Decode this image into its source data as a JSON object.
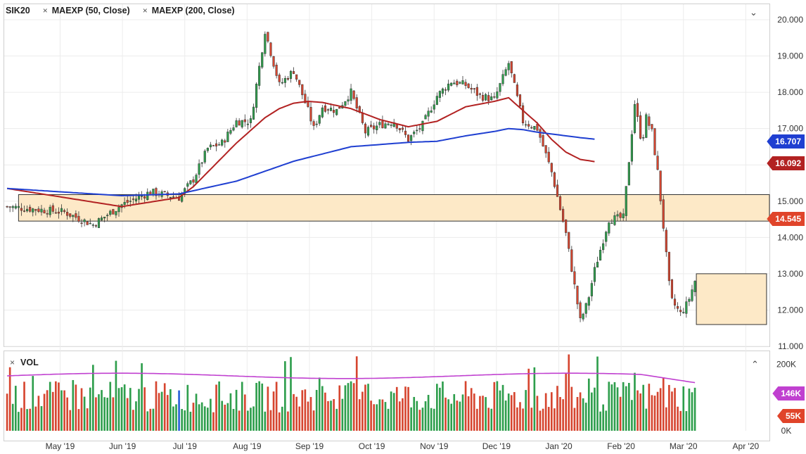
{
  "legend": {
    "symbol": "SIK20",
    "ma50_label": "MAEXP (50, Close)",
    "ma200_label": "MAEXP (200, Close)",
    "remove_glyph": "×"
  },
  "volume_panel": {
    "label": "VOL",
    "collapse_glyph": "⌃",
    "remove_glyph": "×"
  },
  "price_panel": {
    "collapse_glyph": "⌄"
  },
  "price_tags": {
    "ma200": "16.707",
    "ma50": "16.092",
    "last": "14.545"
  },
  "volume_tags": {
    "avg": "146K",
    "last": "55K"
  },
  "colors": {
    "up": "#2e9e4c",
    "down": "#d6452f",
    "ma50": "#b22222",
    "ma200": "#1f3fd1",
    "zone_fill": "#fde9c7",
    "vol_avg": "#c040d0",
    "vol_highlight": "#2860d8",
    "tag_last": "#e0442a",
    "tag_vol_avg": "#c040d0"
  },
  "chart_data": {
    "type": "candlestick",
    "symbol": "SIK20",
    "ylim": [
      11,
      20
    ],
    "ytick_labels": [
      "11.000",
      "12.000",
      "13.000",
      "14.000",
      "15.000",
      "16.000",
      "17.000",
      "18.000",
      "19.000",
      "20.000"
    ],
    "ytick_values": [
      11,
      12,
      13,
      14,
      15,
      16,
      17,
      18,
      19,
      20
    ],
    "xtick_labels": [
      "May '19",
      "Jun '19",
      "Jul '19",
      "Aug '19",
      "Sep '19",
      "Oct '19",
      "Nov '19",
      "Dec '19",
      "Jan '20",
      "Feb '20",
      "Mar '20",
      "Apr '20"
    ],
    "x_range_weeks": [
      -4.2,
      49.2
    ],
    "close_anchor_weeks": [
      -4,
      0,
      2,
      4,
      6,
      8,
      9,
      10,
      11,
      12,
      13,
      14,
      15,
      16,
      17,
      17.4,
      18,
      19,
      20,
      21,
      22,
      23,
      24,
      25,
      26,
      27,
      28,
      29,
      30,
      31,
      32,
      33,
      34,
      35,
      36,
      36.5,
      37,
      38,
      39,
      39.8,
      40.3,
      40.6,
      41,
      41.4,
      41.8,
      42.3,
      43,
      43.5,
      44
    ],
    "close_anchor_values": [
      14.85,
      14.7,
      14.35,
      14.9,
      15.25,
      15.1,
      15.6,
      16.45,
      16.6,
      17.2,
      17.2,
      19.7,
      18.2,
      18.6,
      17.5,
      17.0,
      17.6,
      17.5,
      18.0,
      16.9,
      17.1,
      17.2,
      16.7,
      17.1,
      17.9,
      18.3,
      18.2,
      17.9,
      17.8,
      18.8,
      17.2,
      17.0,
      15.8,
      14.1,
      11.7,
      12.2,
      13.1,
      14.5,
      14.545,
      17.7,
      16.6,
      17.3,
      16.9,
      15.8,
      14.3,
      12.3,
      11.9,
      12.2,
      12.8
    ],
    "volume_ylim": [
      0,
      220000
    ],
    "volume_tick_labels": [
      "0K",
      "200K"
    ],
    "volume_tick_values": [
      0,
      200000
    ],
    "series": [
      {
        "name": "MAEXP (50, Close)",
        "last": 16.092,
        "anchor_weeks": [
          -4,
          0,
          4,
          8,
          9,
          10,
          11,
          12,
          13,
          14,
          15,
          16,
          17,
          18,
          20,
          22,
          24,
          26,
          28,
          30,
          31,
          32,
          33,
          34,
          35,
          36,
          37
        ],
        "anchor_values": [
          15.35,
          15.1,
          14.85,
          15.1,
          15.4,
          15.8,
          16.2,
          16.6,
          16.95,
          17.3,
          17.55,
          17.7,
          17.75,
          17.72,
          17.55,
          17.25,
          17.05,
          17.2,
          17.6,
          17.75,
          17.85,
          17.5,
          17.15,
          16.7,
          16.35,
          16.15,
          16.09
        ]
      },
      {
        "name": "MAEXP (200, Close)",
        "last": 16.707,
        "anchor_weeks": [
          -4,
          0,
          4,
          8,
          12,
          16,
          20,
          24,
          26,
          28,
          30,
          31,
          32,
          33,
          34,
          35,
          36,
          37
        ],
        "anchor_values": [
          15.35,
          15.25,
          15.15,
          15.2,
          15.55,
          16.1,
          16.5,
          16.62,
          16.65,
          16.8,
          16.92,
          17.0,
          16.97,
          16.9,
          16.85,
          16.8,
          16.75,
          16.707
        ]
      }
    ],
    "volume_series": {
      "name": "VOL",
      "last": 55000,
      "average_last": 146000
    },
    "annotations": [
      {
        "type": "zone",
        "from_week": -3.2,
        "to_week": 49.2,
        "low": 14.45,
        "high": 15.18
      },
      {
        "type": "zone",
        "from_week": 44.1,
        "to_week": 49.0,
        "low": 11.6,
        "high": 13.0
      }
    ],
    "grid": true
  }
}
